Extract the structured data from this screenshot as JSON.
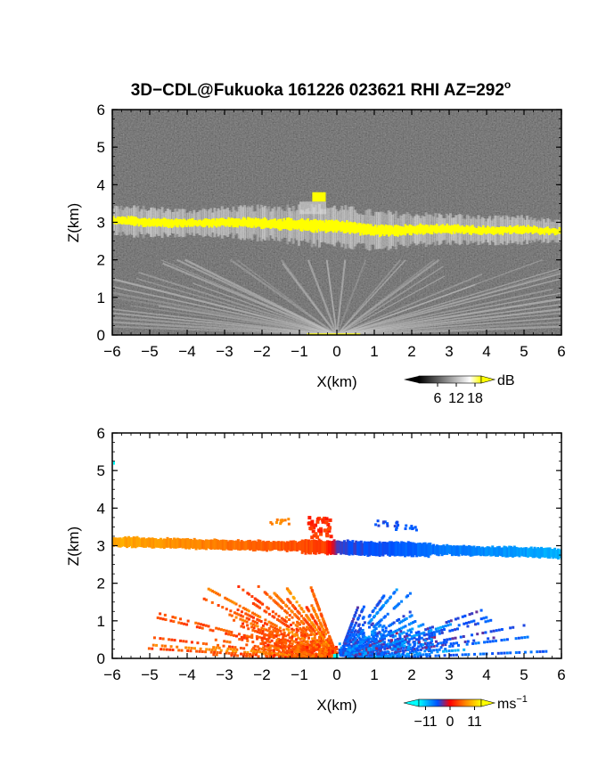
{
  "figure": {
    "title_main": "3D−CDL@Fukuoka 161226 023621 RHI AZ=292",
    "title_degree": "o"
  },
  "chart_data": [
    {
      "type": "heatmap",
      "name": "backscatter",
      "xlabel": "X(km)",
      "ylabel": "Z(km)",
      "xlim": [
        -6,
        6
      ],
      "ylim": [
        0,
        6
      ],
      "xticks": [
        -6,
        -5,
        -4,
        -3,
        -2,
        -1,
        0,
        1,
        2,
        3,
        4,
        5,
        6
      ],
      "yticks": [
        0,
        1,
        2,
        3,
        4,
        5,
        6
      ],
      "colorbar": {
        "unit": "dB",
        "ticks": [
          6,
          12,
          18
        ],
        "range": [
          0,
          20
        ],
        "colors": [
          "#000000",
          "#ffffff",
          "#ffff00"
        ]
      },
      "background": "#2a2a2a",
      "layers": [
        {
          "feature": "cloud layer (saturated, yellow)",
          "x": [
            -6,
            -5,
            -4,
            -3,
            -2,
            -1,
            0,
            1,
            2,
            3,
            4,
            5,
            6
          ],
          "z_center": [
            3.05,
            3.0,
            2.98,
            3.0,
            2.98,
            2.92,
            2.9,
            2.78,
            2.8,
            2.82,
            2.78,
            2.8,
            2.76
          ],
          "thickness": [
            0.22,
            0.22,
            0.2,
            0.22,
            0.25,
            0.3,
            0.3,
            0.28,
            0.25,
            0.22,
            0.2,
            0.2,
            0.15
          ],
          "value_db": 20,
          "color": "#ffff00"
        },
        {
          "feature": "cloud top blob",
          "x_range": [
            -0.8,
            -0.2
          ],
          "z_range": [
            3.55,
            3.8
          ],
          "value_db": 20
        },
        {
          "feature": "beam rays (low-level aerosol)",
          "origin": [
            0,
            0
          ],
          "z_max": 2.0,
          "value_db": 9
        }
      ]
    },
    {
      "type": "heatmap",
      "name": "doppler_velocity",
      "xlabel": "X(km)",
      "ylabel": "Z(km)",
      "xlim": [
        -6,
        6
      ],
      "ylim": [
        0,
        6
      ],
      "xticks": [
        -6,
        -5,
        -4,
        -3,
        -2,
        -1,
        0,
        1,
        2,
        3,
        4,
        5,
        6
      ],
      "yticks": [
        0,
        1,
        2,
        3,
        4,
        5,
        6
      ],
      "colorbar": {
        "unit": "ms",
        "unit_exp": "−1",
        "ticks": [
          -11,
          0,
          11
        ],
        "tick_labels": [
          "−11",
          "0",
          "11"
        ],
        "range": [
          -14,
          14
        ],
        "colors": [
          "#00ffff",
          "#0050ff",
          "#ff0000",
          "#ff8800",
          "#ffff00"
        ]
      },
      "layers": [
        {
          "feature": "cloud layer velocity",
          "x": [
            -6,
            -5,
            -4,
            -3,
            -2,
            -1,
            -0.3,
            0,
            1,
            2,
            3,
            4,
            5,
            6
          ],
          "z_center": [
            3.1,
            3.08,
            3.05,
            3.02,
            3.0,
            2.98,
            2.96,
            2.95,
            2.92,
            2.9,
            2.88,
            2.85,
            2.83,
            2.78
          ],
          "velocity_ms": [
            9,
            8,
            7,
            6,
            5,
            4,
            3,
            -4,
            -5,
            -6,
            -7,
            -8,
            -9,
            -10
          ]
        },
        {
          "feature": "cloud top blob",
          "x_range": [
            -0.8,
            -0.2
          ],
          "z_range": [
            3.2,
            3.85
          ],
          "velocity_ms": 2
        },
        {
          "feature": "aerosol rays left (toward)",
          "x_range": [
            -5.5,
            0
          ],
          "velocity_ms": 4
        },
        {
          "feature": "aerosol rays right (away)",
          "x_range": [
            0,
            6
          ],
          "velocity_ms": -6
        }
      ]
    }
  ]
}
